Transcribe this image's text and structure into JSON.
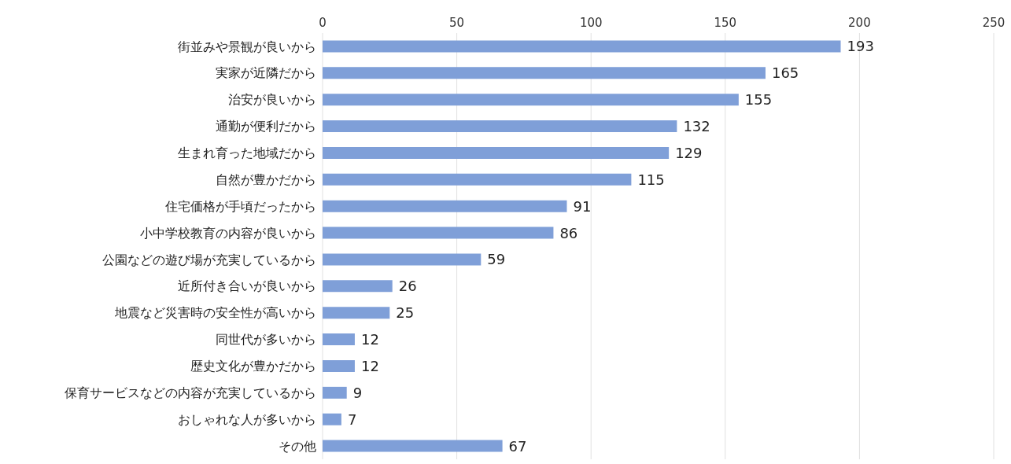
{
  "chart_data": {
    "type": "bar",
    "orientation": "horizontal",
    "categories": [
      "街並みや景観が良いから",
      "実家が近隣だから",
      "治安が良いから",
      "通勤が便利だから",
      "生まれ育った地域だから",
      "自然が豊かだから",
      "住宅価格が手頃だったから",
      "小中学校教育の内容が良いから",
      "公園などの遊び場が充実しているから",
      "近所付き合いが良いから",
      "地震など災害時の安全性が高いから",
      "同世代が多いから",
      "歴史文化が豊かだから",
      "保育サービスなどの内容が充実しているから",
      "おしゃれな人が多いから",
      "その他"
    ],
    "values": [
      193,
      165,
      155,
      132,
      129,
      115,
      91,
      86,
      59,
      26,
      25,
      12,
      12,
      9,
      7,
      67
    ],
    "color": "#7f9fd8",
    "xlim": [
      0,
      250
    ],
    "xticks": [
      0,
      50,
      100,
      150,
      200,
      250
    ],
    "grid": "x",
    "data_labels": true
  }
}
